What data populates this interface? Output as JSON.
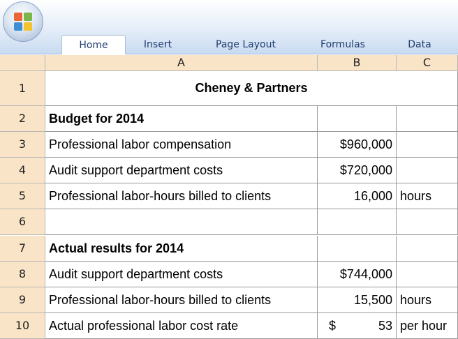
{
  "ribbon": {
    "tabs": [
      "Home",
      "Insert",
      "Page Layout",
      "Formulas",
      "Data"
    ],
    "active_tab": 0
  },
  "columns": [
    "A",
    "B",
    "C"
  ],
  "rows": [
    {
      "num": 1,
      "a": "Cheney & Partners",
      "bold": true,
      "merged": true
    },
    {
      "num": 2,
      "a": "Budget for 2014",
      "bold": true
    },
    {
      "num": 3,
      "a": "Professional labor compensation",
      "b": "$960,000"
    },
    {
      "num": 4,
      "a": "Audit support department costs",
      "b": "$720,000"
    },
    {
      "num": 5,
      "a": "Professional labor-hours billed to clients",
      "b": "16,000",
      "c": "hours"
    },
    {
      "num": 6
    },
    {
      "num": 7,
      "a": "Actual results for 2014",
      "bold": true
    },
    {
      "num": 8,
      "a": "Audit support department costs",
      "b": "$744,000"
    },
    {
      "num": 9,
      "a": "Professional labor-hours billed to clients",
      "b": "15,500",
      "c": "hours"
    },
    {
      "num": 10,
      "a": "Actual professional labor cost rate",
      "b_currency": "$",
      "b": "53",
      "c": "per hour"
    }
  ]
}
